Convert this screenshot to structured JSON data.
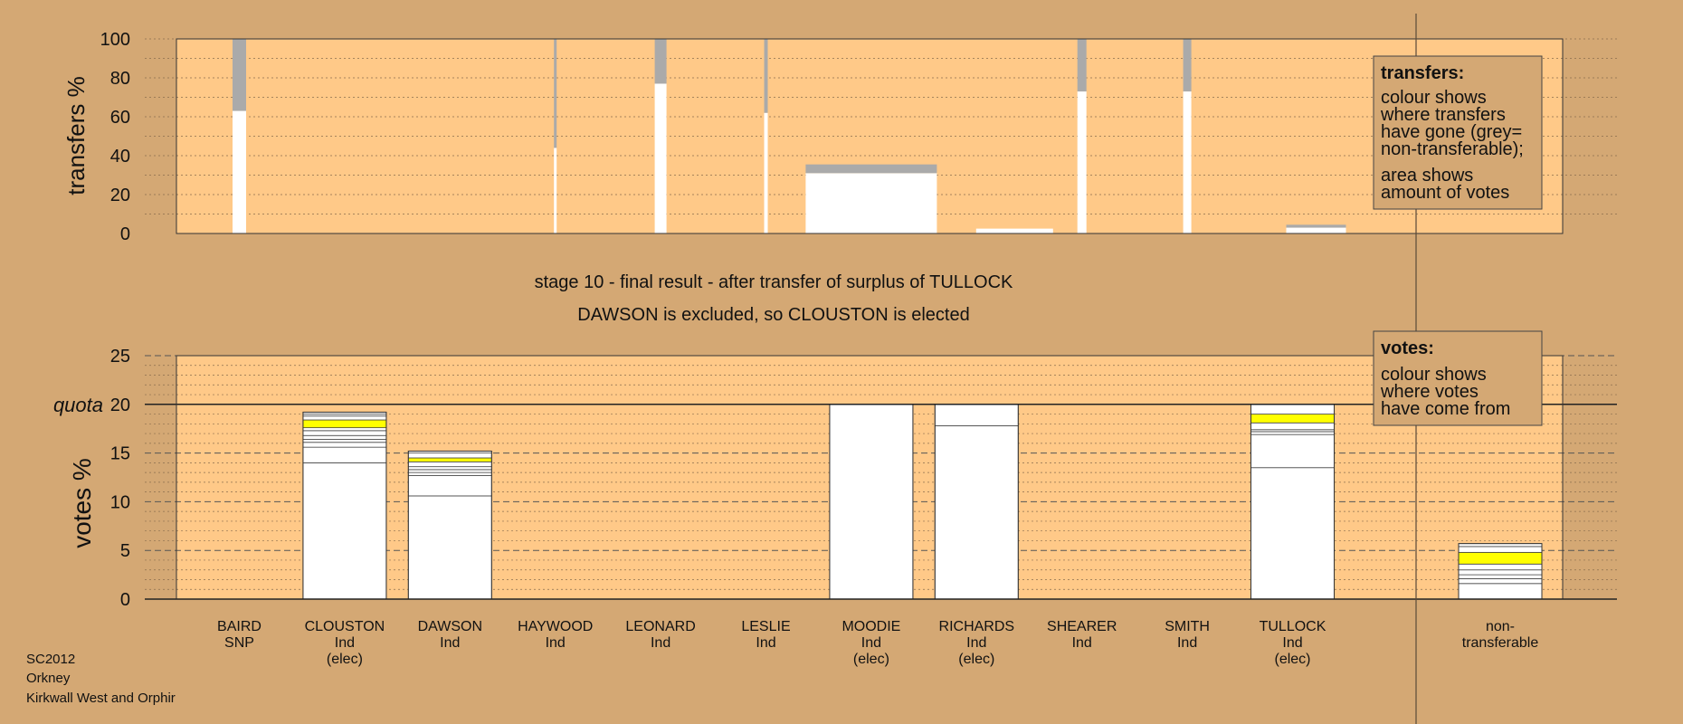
{
  "chart_data": {
    "type": "bar",
    "title": "stage 10 - final result - after transfer of surplus of TULLOCK",
    "subtitle": "DAWSON is excluded, so CLOUSTON is elected",
    "footer": [
      "SC2012",
      "Orkney",
      "Kirkwall West and Orphir"
    ],
    "candidates": [
      {
        "name": "BAIRD",
        "party": "SNP",
        "status": ""
      },
      {
        "name": "CLOUSTON",
        "party": "Ind",
        "status": "(elec)"
      },
      {
        "name": "DAWSON",
        "party": "Ind",
        "status": ""
      },
      {
        "name": "HAYWOOD",
        "party": "Ind",
        "status": ""
      },
      {
        "name": "LEONARD",
        "party": "Ind",
        "status": ""
      },
      {
        "name": "LESLIE",
        "party": "Ind",
        "status": ""
      },
      {
        "name": "MOODIE",
        "party": "Ind",
        "status": "(elec)"
      },
      {
        "name": "RICHARDS",
        "party": "Ind",
        "status": "(elec)"
      },
      {
        "name": "SHEARER",
        "party": "Ind",
        "status": ""
      },
      {
        "name": "SMITH",
        "party": "Ind",
        "status": ""
      },
      {
        "name": "TULLOCK",
        "party": "Ind",
        "status": "(elec)"
      }
    ],
    "nontransferable_label": [
      "non-",
      "transferable"
    ],
    "transfers_panel": {
      "ylabel": "transfers %",
      "ylim": [
        0,
        100
      ],
      "yticks": [
        0,
        20,
        40,
        60,
        80,
        100
      ],
      "bars": [
        {
          "candidate": "BAIRD",
          "white": 63,
          "grey": 37
        },
        {
          "candidate": "HAYWOOD",
          "white": 44,
          "grey": 56
        },
        {
          "candidate": "LEONARD",
          "white": 77,
          "grey": 23
        },
        {
          "candidate": "LESLIE",
          "white": 62,
          "grey": 38
        },
        {
          "candidate": "MOODIE",
          "white": 31,
          "grey": 4.5
        },
        {
          "candidate": "RICHARDS",
          "white": 2.5,
          "grey": 0
        },
        {
          "candidate": "SHEARER",
          "white": 73,
          "grey": 27
        },
        {
          "candidate": "SMITH",
          "white": 73,
          "grey": 27
        },
        {
          "candidate": "TULLOCK",
          "white": 3,
          "grey": 1.5
        }
      ]
    },
    "votes_panel": {
      "ylabel": "votes %",
      "ylim": [
        0,
        25
      ],
      "yticks": [
        0,
        5,
        10,
        15,
        20,
        25
      ],
      "quota": 20,
      "quota_label": "quota",
      "bars": [
        {
          "candidate": "CLOUSTON",
          "segments": [
            {
              "value": 14.0,
              "color": "#ffffff"
            },
            {
              "value": 1.6,
              "color": "#ffffff"
            },
            {
              "value": 0.5,
              "color": "#ffffff"
            },
            {
              "value": 0.3,
              "color": "#ffffff"
            },
            {
              "value": 0.4,
              "color": "#ffffff"
            },
            {
              "value": 0.5,
              "color": "#ffffff"
            },
            {
              "value": 0.3,
              "color": "#ffffff"
            },
            {
              "value": 0.8,
              "color": "#ffff00"
            },
            {
              "value": 0.4,
              "color": "#ffffff"
            },
            {
              "value": 0.2,
              "color": "#ffffff"
            },
            {
              "value": 0.2,
              "color": "#ffffff"
            }
          ]
        },
        {
          "candidate": "DAWSON",
          "segments": [
            {
              "value": 10.6,
              "color": "#ffffff"
            },
            {
              "value": 2.1,
              "color": "#ffffff"
            },
            {
              "value": 0.3,
              "color": "#ffffff"
            },
            {
              "value": 0.3,
              "color": "#ffffff"
            },
            {
              "value": 0.3,
              "color": "#ffffff"
            },
            {
              "value": 0.5,
              "color": "#ffffff"
            },
            {
              "value": 0.4,
              "color": "#ffff00"
            },
            {
              "value": 0.5,
              "color": "#ffffff"
            },
            {
              "value": 0.2,
              "color": "#ffffff"
            }
          ]
        },
        {
          "candidate": "MOODIE",
          "segments": [
            {
              "value": 20.0,
              "color": "#ffffff"
            }
          ]
        },
        {
          "candidate": "RICHARDS",
          "segments": [
            {
              "value": 17.8,
              "color": "#ffffff"
            },
            {
              "value": 2.2,
              "color": "#ffffff"
            }
          ]
        },
        {
          "candidate": "TULLOCK",
          "segments": [
            {
              "value": 13.5,
              "color": "#ffffff"
            },
            {
              "value": 3.4,
              "color": "#ffffff"
            },
            {
              "value": 0.3,
              "color": "#ffffff"
            },
            {
              "value": 0.2,
              "color": "#ffffff"
            },
            {
              "value": 0.7,
              "color": "#ffffff"
            },
            {
              "value": 0.9,
              "color": "#ffff00"
            },
            {
              "value": 1.0,
              "color": "#ffffff"
            }
          ]
        },
        {
          "candidate": "non-transferable",
          "segments": [
            {
              "value": 1.6,
              "color": "#ffffff"
            },
            {
              "value": 0.5,
              "color": "#ffffff"
            },
            {
              "value": 0.4,
              "color": "#ffffff"
            },
            {
              "value": 0.5,
              "color": "#ffffff"
            },
            {
              "value": 0.6,
              "color": "#ffffff"
            },
            {
              "value": 1.2,
              "color": "#ffff00"
            },
            {
              "value": 0.6,
              "color": "#ffffff"
            },
            {
              "value": 0.3,
              "color": "#ffffff"
            }
          ]
        }
      ]
    },
    "legend_transfers": {
      "title": "transfers:",
      "lines": [
        "colour shows",
        "where transfers",
        "have gone (grey=",
        "non-transferable);"
      ],
      "lines2": [
        "area shows",
        "amount of votes"
      ]
    },
    "legend_votes": {
      "title": "votes:",
      "lines": [
        "colour shows",
        "where votes",
        "have come from"
      ]
    },
    "colors": {
      "background": "#d4a874",
      "plot_area": "#ffc988",
      "bar": "#ffffff",
      "nontransferable": "#aaaaaa",
      "highlight": "#ffff00",
      "legend_box": "#d4a874"
    }
  }
}
